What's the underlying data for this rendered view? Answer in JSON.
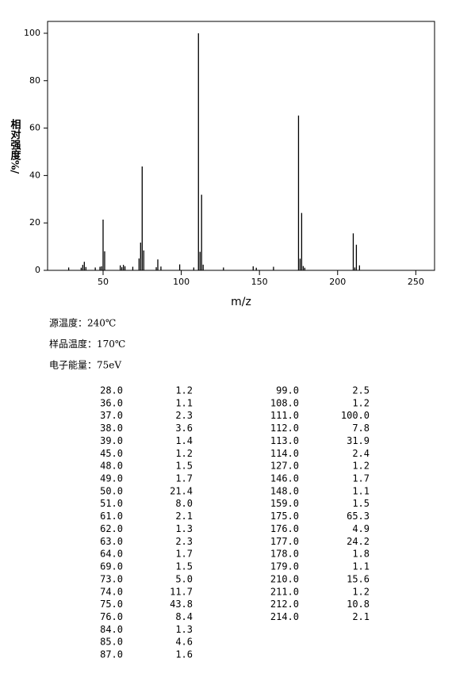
{
  "chart_data": {
    "type": "stick",
    "xlabel": "m/z",
    "ylabel": "相对强度%/",
    "x": [
      28,
      36,
      37,
      38,
      39,
      45,
      48,
      49,
      50,
      51,
      61,
      62,
      63,
      64,
      69,
      73,
      74,
      75,
      76,
      84,
      85,
      87,
      99,
      108,
      111,
      112,
      113,
      114,
      127,
      146,
      148,
      159,
      175,
      176,
      177,
      178,
      179,
      210,
      211,
      212,
      214
    ],
    "values": [
      1.2,
      1.1,
      2.3,
      3.6,
      1.4,
      1.2,
      1.5,
      1.7,
      21.4,
      8.0,
      2.1,
      1.3,
      2.3,
      1.7,
      1.5,
      5.0,
      11.7,
      43.8,
      8.4,
      1.3,
      4.6,
      1.6,
      2.5,
      1.2,
      100.0,
      7.8,
      31.9,
      2.4,
      1.2,
      1.7,
      1.1,
      1.5,
      65.3,
      4.9,
      24.2,
      1.8,
      1.1,
      15.6,
      1.2,
      10.8,
      2.1
    ],
    "color": "#000000",
    "xlim": [
      14.5,
      262
    ],
    "xticks": [
      50,
      100,
      150,
      200,
      250
    ],
    "ylim": [
      0,
      105
    ],
    "yticks": [
      0,
      20,
      40,
      60,
      80,
      100
    ]
  },
  "info": [
    "源温度：240℃",
    "样品温度：170℃",
    "电子能量：75eV"
  ],
  "table": {
    "rows": [
      [
        "28.0",
        "1.2"
      ],
      [
        "36.0",
        "1.1"
      ],
      [
        "37.0",
        "2.3"
      ],
      [
        "38.0",
        "3.6"
      ],
      [
        "39.0",
        "1.4"
      ],
      [
        "45.0",
        "1.2"
      ],
      [
        "48.0",
        "1.5"
      ],
      [
        "49.0",
        "1.7"
      ],
      [
        "50.0",
        "21.4"
      ],
      [
        "51.0",
        "8.0"
      ],
      [
        "61.0",
        "2.1"
      ],
      [
        "62.0",
        "1.3"
      ],
      [
        "63.0",
        "2.3"
      ],
      [
        "64.0",
        "1.7"
      ],
      [
        "69.0",
        "1.5"
      ],
      [
        "73.0",
        "5.0"
      ],
      [
        "74.0",
        "11.7"
      ],
      [
        "75.0",
        "43.8"
      ],
      [
        "76.0",
        "8.4"
      ],
      [
        "84.0",
        "1.3"
      ],
      [
        "85.0",
        "4.6"
      ],
      [
        "87.0",
        "1.6"
      ],
      [
        "99.0",
        "2.5"
      ],
      [
        "108.0",
        "1.2"
      ],
      [
        "111.0",
        "100.0"
      ],
      [
        "112.0",
        "7.8"
      ],
      [
        "113.0",
        "31.9"
      ],
      [
        "114.0",
        "2.4"
      ],
      [
        "127.0",
        "1.2"
      ],
      [
        "146.0",
        "1.7"
      ],
      [
        "148.0",
        "1.1"
      ],
      [
        "159.0",
        "1.5"
      ],
      [
        "175.0",
        "65.3"
      ],
      [
        "176.0",
        "4.9"
      ],
      [
        "177.0",
        "24.2"
      ],
      [
        "178.0",
        "1.8"
      ],
      [
        "179.0",
        "1.1"
      ],
      [
        "210.0",
        "15.6"
      ],
      [
        "211.0",
        "1.2"
      ],
      [
        "212.0",
        "10.8"
      ],
      [
        "214.0",
        "2.1"
      ]
    ]
  }
}
